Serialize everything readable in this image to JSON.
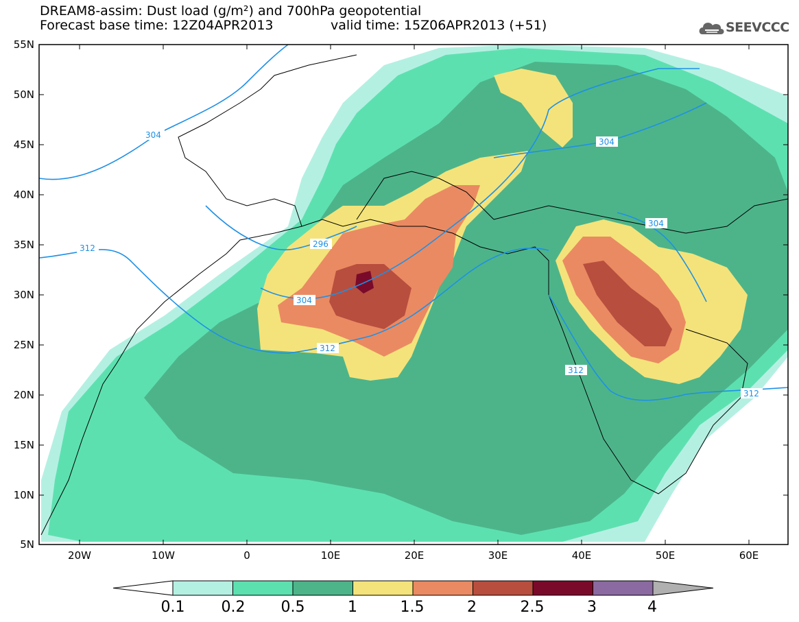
{
  "header": {
    "title_line1": "DREAM8-assim: Dust load (g/m²) and 700hPa geopotential",
    "title_line2": "Forecast base time: 12Z04APR2013",
    "valid_time": "valid time: 15Z06APR2013 (+51)",
    "logo_text": "SEEVCCC"
  },
  "map": {
    "lat_labels": [
      "55N",
      "50N",
      "45N",
      "40N",
      "35N",
      "30N",
      "25N",
      "20N",
      "15N",
      "10N",
      "5N"
    ],
    "lon_labels": [
      "20W",
      "10W",
      "0",
      "10E",
      "20E",
      "30E",
      "40E",
      "50E",
      "60E"
    ],
    "contour_labels": [
      "304",
      "304",
      "312",
      "296",
      "304",
      "304",
      "312",
      "312",
      "312"
    ]
  },
  "legend": {
    "title": "",
    "bins": [
      {
        "label": "0.1",
        "color": "#b4f0e2"
      },
      {
        "label": "0.2",
        "color": "#5de0b0"
      },
      {
        "label": "0.5",
        "color": "#4db48a"
      },
      {
        "label": "1",
        "color": "#f4e37a"
      },
      {
        "label": "1.5",
        "color": "#ea8a62"
      },
      {
        "label": "2",
        "color": "#b84e3e"
      },
      {
        "label": "2.5",
        "color": "#7a0a2a"
      },
      {
        "label": "3",
        "color": "#8a6aa0"
      },
      {
        "label": "4",
        "color": "#b0b0b0"
      }
    ],
    "tick_labels": [
      "0.1",
      "0.2",
      "0.5",
      "1",
      "1.5",
      "2",
      "2.5",
      "3",
      "4"
    ]
  },
  "colors": {
    "contour": "#1e90e6",
    "border": "#000000",
    "background": "#ffffff"
  }
}
